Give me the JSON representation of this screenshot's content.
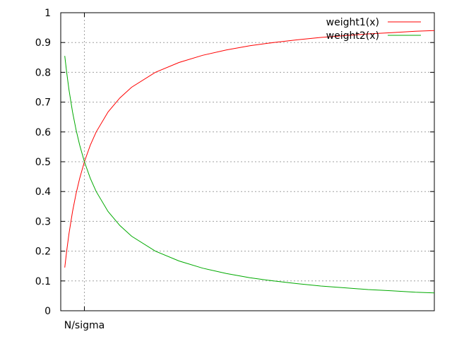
{
  "chart_data": {
    "type": "line",
    "title": "",
    "xlabel": "",
    "ylabel": "",
    "xlim": [
      0,
      15.8
    ],
    "ylim": [
      0,
      1
    ],
    "x_ticks": [
      {
        "x": 1,
        "label": "N/sigma"
      }
    ],
    "y_ticks": [
      {
        "y": 0,
        "label": "0"
      },
      {
        "y": 0.1,
        "label": "0.1"
      },
      {
        "y": 0.2,
        "label": "0.2"
      },
      {
        "y": 0.3,
        "label": "0.3"
      },
      {
        "y": 0.4,
        "label": "0.4"
      },
      {
        "y": 0.5,
        "label": "0.5"
      },
      {
        "y": 0.6,
        "label": "0.6"
      },
      {
        "y": 0.7,
        "label": "0.7"
      },
      {
        "y": 0.8,
        "label": "0.8"
      },
      {
        "y": 0.9,
        "label": "0.9"
      },
      {
        "y": 1,
        "label": "1"
      }
    ],
    "grid": true,
    "legend_position": "top-right",
    "series": [
      {
        "name": "weight1(x)",
        "color": "#ff0000",
        "x": [
          0.17,
          0.25,
          0.35,
          0.5,
          0.65,
          0.8,
          1.0,
          1.25,
          1.5,
          2.0,
          2.5,
          3.0,
          4.0,
          5.0,
          6.0,
          7.0,
          8.0,
          9.0,
          10.0,
          11.0,
          12.0,
          13.0,
          14.0,
          15.0,
          15.8
        ],
        "y": [
          0.145,
          0.2,
          0.259,
          0.333,
          0.394,
          0.444,
          0.5,
          0.556,
          0.6,
          0.667,
          0.714,
          0.75,
          0.8,
          0.833,
          0.857,
          0.875,
          0.889,
          0.9,
          0.909,
          0.917,
          0.923,
          0.929,
          0.933,
          0.938,
          0.94
        ]
      },
      {
        "name": "weight2(x)",
        "color": "#00aa00",
        "x": [
          0.17,
          0.25,
          0.35,
          0.5,
          0.65,
          0.8,
          1.0,
          1.25,
          1.5,
          2.0,
          2.5,
          3.0,
          4.0,
          5.0,
          6.0,
          7.0,
          8.0,
          9.0,
          10.0,
          11.0,
          12.0,
          13.0,
          14.0,
          15.0,
          15.8
        ],
        "y": [
          0.855,
          0.8,
          0.741,
          0.667,
          0.606,
          0.556,
          0.5,
          0.444,
          0.4,
          0.333,
          0.286,
          0.25,
          0.2,
          0.167,
          0.143,
          0.125,
          0.111,
          0.1,
          0.091,
          0.083,
          0.077,
          0.071,
          0.067,
          0.062,
          0.06
        ]
      }
    ]
  }
}
